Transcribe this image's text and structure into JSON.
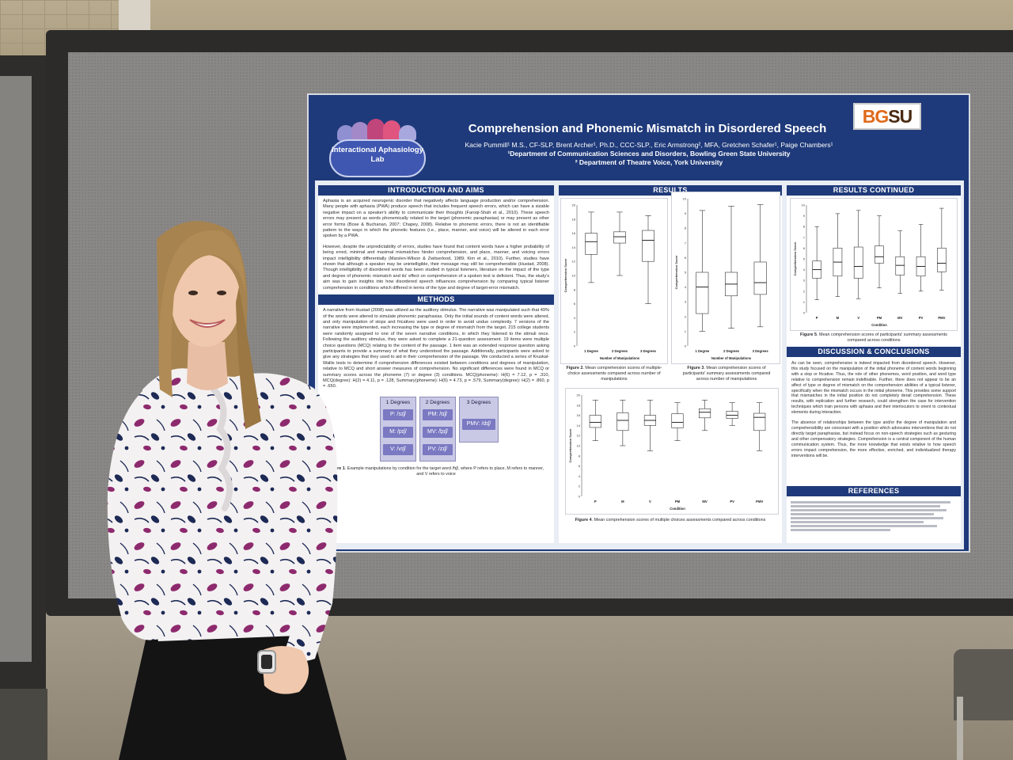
{
  "poster": {
    "lab_logo_text": "Interactional Aphasiology Lab",
    "title": "Comprehension and Phonemic Mismatch in Disordered Speech",
    "authors": "Kacie Pummill¹ M.S., CF-SLP, Brent Archer¹, Ph.D., CCC-SLP., Eric Armstrong², MFA, Gretchen Schafer¹, Paige Chambers¹",
    "affiliation_1": "¹Department of Communication Sciences and Disorders, Bowling Green State University",
    "affiliation_2": "² Department of Theatre Voice, York University",
    "logo_bg": "BG",
    "logo_su": "SU",
    "intro": {
      "heading": "INTRODUCTION AND AIMS",
      "p1": "Aphasia is an acquired neurogenic disorder that negatively affects language production and/or comprehension. Many people with aphasia (PWA) produce speech that includes frequent speech errors, which can have a sizable negative impact on a speaker's ability to communicate their thoughts (Faroqi-Shah et al., 2010). These speech errors may present as words phonemically related to the target (phonemic paraphasias) or may present as other error forms (Bose & Buchanan, 2007; Chapey, 2008). Relative to phonemic errors, there is not an identifiable pattern to the ways in which the phonetic features (i.e., place, manner, and voice) will be altered in each error spoken by a PWA.",
      "p2": "However, despite the unpredictability of errors, studies have found that content words have a higher probability of being erred, minimal and maximal mismatches hinder comprehension, and place, manner, and voicing errors impact intelligibility differentially (Marslen-Wilson & Zwitserlood, 1989; Kim et al., 2010). Further, studies have shown that although a speaker may be unintelligible, their message may still be comprehensible (Hustad, 2008). Though intelligibility of disordered words has been studied in typical listeners, literature on the impact of the type and degree of phonemic mismatch and its' effect on comprehension of a spoken text is deficient. Thus, the study's aim was to gain insights into how disordered speech influences comprehension by comparing typical listener comprehension in conditions which differed in terms of the type and degree of target-error mismatch."
    },
    "methods": {
      "heading": "METHODS",
      "p1": "A narrative from Hustad (2008) was utilized as the auditory stimulus. The narrative was manipulated such that 49% of the words were altered to simulate phonemic paraphasias. Only the initial sounds of content words were altered, and only manipulation of stops and fricatives were used in order to avoid undue complexity. 7 versions of the narrative were implemented, each increasing the type or degree of mismatch from the target. 215 college students were randomly assigned to one of the seven narrative conditions, in which they listened to the stimuli once. Following the auditory stimulus, they were asked to complete a 21-question assessment. 19 items were multiple choice questions (MCQ) relating to the content of the passage. 1 item was an extended response question asking participants to provide a summary of what they understood the passage. Additionally, participants were asked to give any strategies that they used to aid in their comprehension of the passage. We conducted a series of Kruskal-Wallis tests to determine if comprehension differences existed between conditions and degrees of manipulation, relative to MCQ and short answer measures of comprehension. No significant differences were found in MCQ or summary scores across the phoneme (7) or degree (3) conditions. MCQ(phoneme): H(6) = 7.12, p = .310, MCQ(degree): H(2) = 4.11, p = .128, Summary(phoneme): H(6) = 4.73, p = .579, Summary(degree): H(2) = .860, p = .650.",
      "deg1": "1 Degrees",
      "deg2": "2 Degrees",
      "deg3": "3 Degrees",
      "c_p": "P: /sɪʃ/",
      "c_m": "M: /pɪʃ/",
      "c_v": "V: /vɪʃ/",
      "c_pm": "PM: /tɪʃ/",
      "c_mv": "MV: /ḇɪʃ/",
      "c_pv": "PV: /zɪʃ/",
      "c_pmv": "PMV: /dɪʃ/",
      "fig1_label": "Figure 1",
      "fig1_caption": ". Example manipulations by condition for the target word /fɪʃ/, where P refers to place, M refers to manner, and V refers to voice"
    },
    "results": {
      "heading": "RESULTS",
      "fig2_label": "Figure 2",
      "fig2_caption": ". Mean comprehension scores of multiple-choice assessments compared across number of manipulations",
      "fig3_label": "Figure 3",
      "fig3_caption": ". Mean comprehension scores of participants' summary assessments compared across number of manipulations",
      "fig4_label": "Figure 4",
      "fig4_caption": ". Mean comprehension scores of multiple choices assessments compared across conditions"
    },
    "results_continued": {
      "heading": "RESULTS CONTINUED",
      "fig5_label": "Figure 5",
      "fig5_caption": ". Mean comprehension scores of participants' summary assessments compared across conditions"
    },
    "discussion": {
      "heading": "DISCUSSION & CONCLUSIONS",
      "p1": "As can be seen, comprehension is indeed impacted from disordered speech. However, this study focused on the manipulation of the initial phoneme of content words beginning with a stop or fricative. Thus, the role of other phonemes, word position, and word type relative to comprehension remain indefinable. Further, there does not appear to be an affect of type or degree of mismatch on the comprehension abilities of a typical listener, specifically when the mismatch occurs in the initial phoneme. This provides some support that mismatches in the initial position do not completely derail comprehension. These results, with replication and further research, could strengthen the case for intervention techniques which train persons with aphasia and their interlocutors to orient to contextual elements during interaction.",
      "p2": "The absence of relationships between the type and/or the degree of manipulation and comprehensibility are consonant with a position which advocates interventions that do not directly target paraphasias, but instead focus on non-speech strategies such as gesturing and other compensatory strategies. Comprehension is a central component of the human communication system. Thus, the more knowledge that exists relative to how speech errors impact comprehension, the more effective, enriched, and individualized therapy interventions will be."
    },
    "references": {
      "heading": "REFERENCES"
    }
  },
  "chart_data": [
    {
      "type": "boxplot",
      "figure": "Figure 2",
      "categories": [
        "1 Degree",
        "2 Degrees",
        "3 Degrees"
      ],
      "xlabel": "Number of Manipulations",
      "ylabel": "Comprehension Score",
      "ylim": [
        0,
        20
      ],
      "yticks": [
        0,
        2,
        4,
        6,
        8,
        10,
        12,
        14,
        16,
        18,
        20
      ],
      "boxes": [
        {
          "min": 9,
          "q1": 13,
          "median": 14.8,
          "q3": 16,
          "max": 19
        },
        {
          "min": 10,
          "q1": 14.6,
          "median": 15.5,
          "q3": 16.2,
          "max": 19
        },
        {
          "min": 6,
          "q1": 12,
          "median": 15,
          "q3": 16.4,
          "max": 18.5
        }
      ]
    },
    {
      "type": "boxplot",
      "figure": "Figure 3",
      "categories": [
        "1 Degree",
        "2 Degrees",
        "3 Degrees"
      ],
      "xlabel": "Number of Manipulations",
      "ylabel": "Comprehension Score",
      "ylim": [
        0,
        10
      ],
      "yticks": [
        0,
        1,
        2,
        3,
        4,
        5,
        6,
        7,
        8,
        9,
        10
      ],
      "boxes": [
        {
          "min": 1,
          "q1": 2.2,
          "median": 4,
          "q3": 5,
          "max": 9.2
        },
        {
          "min": 1.2,
          "q1": 3.4,
          "median": 4.2,
          "q3": 5,
          "max": 9.5
        },
        {
          "min": 1.3,
          "q1": 3.5,
          "median": 4.3,
          "q3": 5.7,
          "max": 9.6
        }
      ]
    },
    {
      "type": "boxplot",
      "figure": "Figure 4",
      "categories": [
        "P",
        "M",
        "V",
        "PM",
        "MV",
        "PV",
        "PMV"
      ],
      "xlabel": "Condition",
      "ylabel": "Comprehension Score",
      "ylim": [
        0,
        20
      ],
      "yticks": [
        0,
        2,
        4,
        6,
        8,
        10,
        12,
        14,
        16,
        18,
        20
      ],
      "boxes": [
        {
          "min": 11,
          "q1": 13.6,
          "median": 14.6,
          "q3": 16,
          "max": 19
        },
        {
          "min": 10,
          "q1": 13,
          "median": 15,
          "q3": 16.5,
          "max": 19
        },
        {
          "min": 9,
          "q1": 14,
          "median": 15,
          "q3": 16,
          "max": 19
        },
        {
          "min": 11,
          "q1": 13.5,
          "median": 14.6,
          "q3": 16.3,
          "max": 18.5
        },
        {
          "min": 13,
          "q1": 15.5,
          "median": 16.6,
          "q3": 17.3,
          "max": 19
        },
        {
          "min": 14,
          "q1": 15.4,
          "median": 16,
          "q3": 16.8,
          "max": 18.5
        },
        {
          "min": 9,
          "q1": 13,
          "median": 15.6,
          "q3": 16.4,
          "max": 18.5
        }
      ]
    },
    {
      "type": "boxplot",
      "figure": "Figure 5",
      "categories": [
        "P",
        "M",
        "V",
        "PM",
        "MV",
        "PV",
        "PMV"
      ],
      "xlabel": "Condition",
      "ylabel": "Comprehension Score",
      "ylim": [
        0,
        10
      ],
      "yticks": [
        0,
        1,
        2,
        3,
        4,
        5,
        6,
        7,
        8,
        9,
        10
      ],
      "boxes": [
        {
          "min": 1.2,
          "q1": 3.2,
          "median": 4,
          "q3": 4.8,
          "max": 8
        },
        {
          "min": 1.5,
          "q1": 3.4,
          "median": 4.7,
          "q3": 6,
          "max": 9.2
        },
        {
          "min": 1.3,
          "q1": 3.2,
          "median": 4.3,
          "q3": 6.1,
          "max": 9.5
        },
        {
          "min": 2.3,
          "q1": 4.6,
          "median": 5.2,
          "q3": 6.2,
          "max": 9
        },
        {
          "min": 1.8,
          "q1": 3.5,
          "median": 4.4,
          "q3": 5.2,
          "max": 7.6
        },
        {
          "min": 2,
          "q1": 3.4,
          "median": 4.3,
          "q3": 5.2,
          "max": 8.2
        },
        {
          "min": 2.1,
          "q1": 3.8,
          "median": 4.6,
          "q3": 6,
          "max": 9.7
        }
      ]
    }
  ],
  "colors": {
    "poster_navy": "#1f3a7a",
    "logo_orange": "#e06a1b",
    "logo_brown": "#4a2a13",
    "manipulation_purple": "#7a79c2",
    "blouse_floral_purple": "#8d2a6e",
    "blouse_floral_navy": "#1d2a55"
  }
}
